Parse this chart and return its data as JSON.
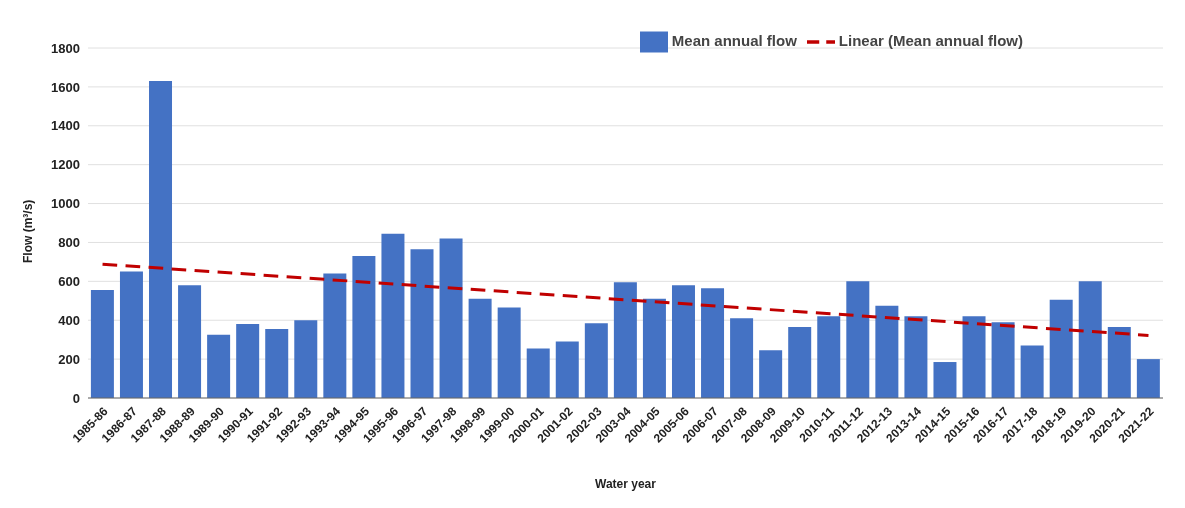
{
  "chart_data": {
    "type": "bar",
    "xlabel": "Water year",
    "ylabel": "Flow (m³/s)",
    "categories": [
      "1985-86",
      "1986-87",
      "1987-88",
      "1988-89",
      "1989-90",
      "1990-91",
      "1991-92",
      "1992-93",
      "1993-94",
      "1994-95",
      "1995-96",
      "1996-97",
      "1997-98",
      "1998-99",
      "1999-00",
      "2000-01",
      "2001-02",
      "2002-03",
      "2003-04",
      "2004-05",
      "2005-06",
      "2006-07",
      "2007-08",
      "2008-09",
      "2009-10",
      "2010-11",
      "2011-12",
      "2012-13",
      "2013-14",
      "2014-15",
      "2015-16",
      "2016-17",
      "2017-18",
      "2018-19",
      "2019-20",
      "2020-21",
      "2021-22"
    ],
    "series": [
      {
        "name": "Mean annual flow",
        "color": "#4472c4",
        "values": [
          555,
          650,
          1630,
          580,
          325,
          380,
          355,
          400,
          640,
          730,
          845,
          765,
          820,
          510,
          465,
          255,
          290,
          385,
          595,
          510,
          580,
          565,
          410,
          245,
          365,
          420,
          600,
          475,
          420,
          185,
          420,
          390,
          270,
          505,
          600,
          365,
          200
        ]
      },
      {
        "name": "Linear (Mean annual flow)",
        "type": "line",
        "color": "#c00000",
        "line_style": "dashed",
        "x": [
          "1985-86",
          "2021-22"
        ],
        "values": [
          688,
          322
        ]
      }
    ],
    "ylim": [
      0,
      1800
    ],
    "yticks": [
      0,
      200,
      400,
      600,
      800,
      1000,
      1200,
      1400,
      1600,
      1800
    ],
    "grid": "y",
    "legend": "top right"
  }
}
